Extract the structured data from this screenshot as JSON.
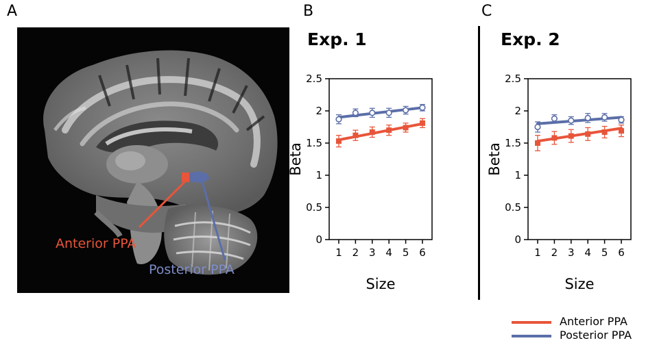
{
  "panels": {
    "a_letter": "A",
    "b_letter": "B",
    "c_letter": "C"
  },
  "mri": {
    "anterior_label": "Anterior PPA",
    "posterior_label": "Posterior PPA"
  },
  "colors": {
    "anterior": "#E8553A",
    "posterior": "#5B6EA8",
    "mri_background": "#050505"
  },
  "legend": {
    "anterior": "Anterior PPA",
    "posterior": "Posterior PPA"
  },
  "chart_data": [
    {
      "type": "line",
      "title": "Exp. 1",
      "xlabel": "Size",
      "ylabel": "Beta",
      "x": [
        1,
        2,
        3,
        4,
        5,
        6
      ],
      "xlim": [
        1,
        6
      ],
      "ylim": [
        0,
        2.5
      ],
      "yticks": [
        0,
        0.5,
        1,
        1.5,
        2,
        2.5
      ],
      "ytick_labels": [
        "0",
        "0.5",
        "1",
        "1.5",
        "2",
        "2.5"
      ],
      "grid": false,
      "series": [
        {
          "name": "Anterior PPA",
          "values": [
            1.53,
            1.62,
            1.67,
            1.7,
            1.74,
            1.81
          ],
          "errors": [
            0.09,
            0.08,
            0.08,
            0.08,
            0.07,
            0.07
          ],
          "fit": [
            1.55,
            1.8
          ],
          "marker": "square-filled"
        },
        {
          "name": "Posterior PPA",
          "values": [
            1.87,
            1.97,
            1.97,
            1.97,
            2.01,
            2.05
          ],
          "errors": [
            0.07,
            0.06,
            0.07,
            0.07,
            0.06,
            0.05
          ],
          "fit": [
            1.9,
            2.05
          ],
          "marker": "circle-open"
        }
      ]
    },
    {
      "type": "line",
      "title": "Exp. 2",
      "xlabel": "Size",
      "ylabel": "Beta",
      "x": [
        1,
        2,
        3,
        4,
        5,
        6
      ],
      "xlim": [
        1,
        6
      ],
      "ylim": [
        0,
        2.5
      ],
      "yticks": [
        0,
        0.5,
        1,
        1.5,
        2,
        2.5
      ],
      "ytick_labels": [
        "0",
        "0.5",
        "1",
        "1.5",
        "2",
        "2.5"
      ],
      "grid": false,
      "series": [
        {
          "name": "Anterior PPA",
          "values": [
            1.5,
            1.58,
            1.61,
            1.64,
            1.67,
            1.69
          ],
          "errors": [
            0.12,
            0.1,
            0.1,
            0.1,
            0.09,
            0.09
          ],
          "fit": [
            1.53,
            1.73
          ],
          "marker": "square-filled"
        },
        {
          "name": "Posterior PPA",
          "values": [
            1.75,
            1.88,
            1.85,
            1.89,
            1.9,
            1.86
          ],
          "errors": [
            0.08,
            0.06,
            0.06,
            0.07,
            0.06,
            0.05
          ],
          "fit": [
            1.8,
            1.9
          ],
          "marker": "circle-open"
        }
      ]
    }
  ]
}
